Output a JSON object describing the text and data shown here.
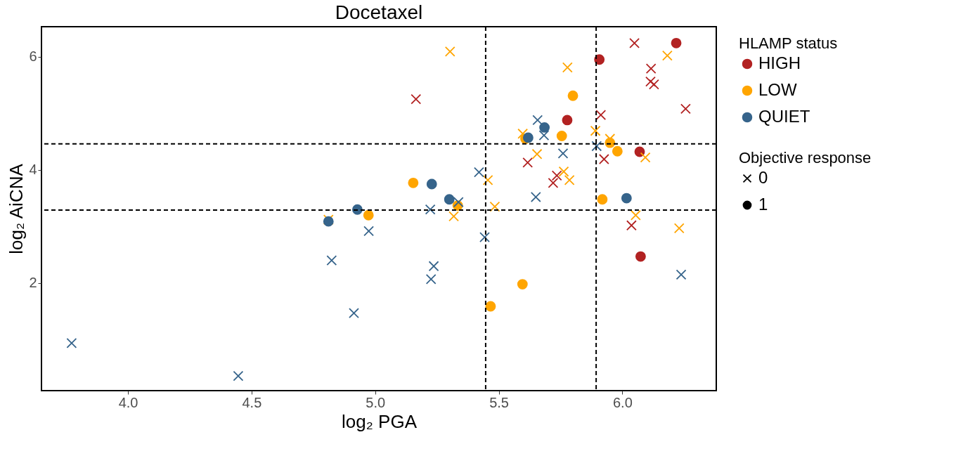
{
  "chart_data": {
    "type": "scatter",
    "title": "Docetaxel",
    "xlabel": "log₂ PGA",
    "ylabel": "log₂ AiCNA",
    "legend_title": [
      "HLAMP status",
      "Objective response"
    ],
    "legend": "right",
    "grid": false,
    "annotations": [
      "0",
      "1"
    ],
    "xlim": [
      3.65,
      6.38
    ],
    "ylim": [
      0.1,
      6.53
    ],
    "xticks": [
      {
        "value": 4,
        "label": "4.0"
      },
      4.5,
      {
        "value": 5,
        "label": "5.0"
      },
      5.5,
      {
        "value": 6,
        "label": "6.0"
      }
    ],
    "yticks": [
      2,
      4,
      6
    ],
    "ref_lines": [
      {
        "axis": "x",
        "value": 5.447,
        "line_style": "dashed",
        "color": "#000000"
      },
      {
        "axis": "x",
        "value": 5.894,
        "line_style": "dashed",
        "color": "#000000"
      },
      {
        "axis": "y",
        "value": 4.46,
        "line_style": "dashed",
        "color": "#000000"
      },
      {
        "axis": "y",
        "value": 3.29,
        "line_style": "dashed",
        "color": "#000000"
      }
    ],
    "series": [
      {
        "name": "HIGH",
        "marker": "cross",
        "color": "#b22222",
        "x": [
          5.165,
          6.049,
          6.116,
          6.114,
          6.128,
          6.256,
          5.913,
          5.926,
          5.617,
          5.735,
          5.72,
          6.037
        ],
        "values": [
          5.25,
          6.24,
          5.79,
          5.56,
          5.51,
          5.08,
          4.97,
          4.19,
          4.13,
          3.9,
          3.77,
          3.02
        ]
      },
      {
        "marker": "circle",
        "color": "#b22222",
        "x": [
          5.907,
          6.218,
          5.777,
          6.07,
          6.074
        ],
        "values": [
          5.95,
          6.24,
          4.88,
          4.32,
          2.47
        ]
      },
      {
        "name": "LOW",
        "marker": "cross",
        "color": "#ffa500",
        "x": [
          5.303,
          4.811,
          5.318,
          5.484,
          5.456,
          5.778,
          6.182,
          5.597,
          5.891,
          5.95,
          5.655,
          6.093,
          5.763,
          5.786,
          6.054,
          6.23
        ],
        "values": [
          6.09,
          3.12,
          3.18,
          3.35,
          3.82,
          5.81,
          6.02,
          4.64,
          4.69,
          4.55,
          4.28,
          4.22,
          3.97,
          3.82,
          3.2,
          2.97
        ]
      },
      {
        "marker": "circle",
        "color": "#ffa500",
        "x": [
          4.973,
          5.154,
          5.334,
          5.467,
          5.596,
          5.608,
          5.755,
          5.8,
          5.95,
          5.98,
          5.919
        ],
        "values": [
          3.2,
          3.77,
          3.37,
          1.59,
          1.98,
          4.55,
          4.6,
          5.31,
          4.48,
          4.33,
          3.48
        ]
      },
      {
        "name": "QUIET",
        "marker": "cross",
        "color": "#36648b",
        "x": [
          3.772,
          4.446,
          4.824,
          4.914,
          4.974,
          5.223,
          5.237,
          5.226,
          5.337,
          5.42,
          5.443,
          5.657,
          5.683,
          5.76,
          5.65,
          5.896,
          6.238
        ],
        "values": [
          0.94,
          0.36,
          2.4,
          1.47,
          2.92,
          3.3,
          2.3,
          2.07,
          3.43,
          3.96,
          2.81,
          4.88,
          4.61,
          4.29,
          3.52,
          4.42,
          2.15
        ]
      },
      {
        "marker": "circle",
        "color": "#36648b",
        "x": [
          4.811,
          4.928,
          5.229,
          5.3,
          5.619,
          5.685,
          6.017
        ],
        "values": [
          3.09,
          3.3,
          3.75,
          3.48,
          4.57,
          4.75,
          3.5
        ]
      }
    ]
  }
}
